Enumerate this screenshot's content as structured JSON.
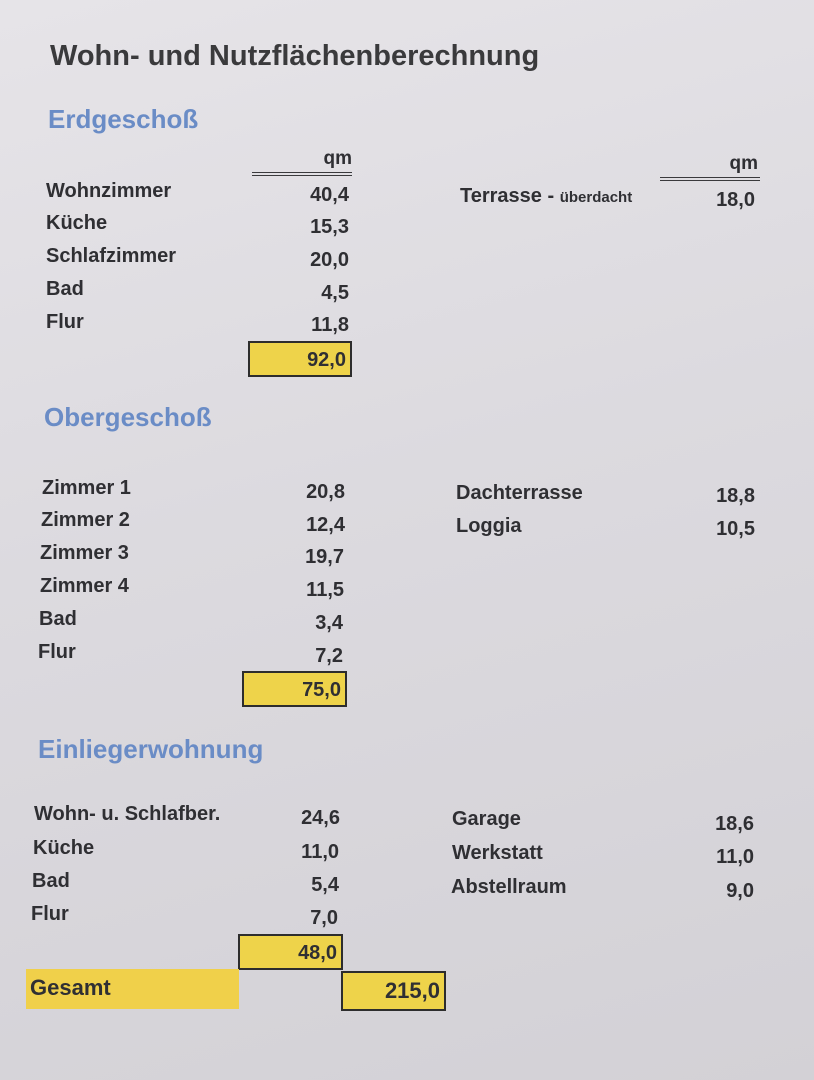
{
  "title": "Wohn- und Nutzflächenberechnung",
  "unit": "qm",
  "erdgeschoss": {
    "heading": "Erdgeschoß",
    "rooms": [
      {
        "name": "Wohnzimmer",
        "value": "40,4"
      },
      {
        "name": "Küche",
        "value": "15,3"
      },
      {
        "name": "Schlafzimmer",
        "value": "20,0"
      },
      {
        "name": "Bad",
        "value": "4,5"
      },
      {
        "name": "Flur",
        "value": "11,8"
      }
    ],
    "total": "92,0",
    "extra": [
      {
        "name": "Terrasse - ",
        "note": "überdacht",
        "value": "18,0"
      }
    ]
  },
  "obergeschoss": {
    "heading": "Obergeschoß",
    "rooms": [
      {
        "name": "Zimmer 1",
        "value": "20,8"
      },
      {
        "name": "Zimmer 2",
        "value": "12,4"
      },
      {
        "name": "Zimmer 3",
        "value": "19,7"
      },
      {
        "name": "Zimmer 4",
        "value": "11,5"
      },
      {
        "name": "Bad",
        "value": "3,4"
      },
      {
        "name": "Flur",
        "value": "7,2"
      }
    ],
    "total": "75,0",
    "extra": [
      {
        "name": "Dachterrasse",
        "value": "18,8"
      },
      {
        "name": "Loggia",
        "value": "10,5"
      }
    ]
  },
  "einliegerwohnung": {
    "heading": "Einliegerwohnung",
    "rooms": [
      {
        "name": "Wohn- u. Schlafber.",
        "value": "24,6"
      },
      {
        "name": "Küche",
        "value": "11,0"
      },
      {
        "name": "Bad",
        "value": "5,4"
      },
      {
        "name": "Flur",
        "value": "7,0"
      }
    ],
    "total": "48,0",
    "extra": [
      {
        "name": "Garage",
        "value": "18,6"
      },
      {
        "name": "Werkstatt",
        "value": "11,0"
      },
      {
        "name": "Abstellraum",
        "value": "9,0"
      }
    ]
  },
  "gesamt": {
    "label": "Gesamt",
    "value": "215,0"
  },
  "colors": {
    "highlight": "#eed34a",
    "heading": "#6a8cc6"
  }
}
